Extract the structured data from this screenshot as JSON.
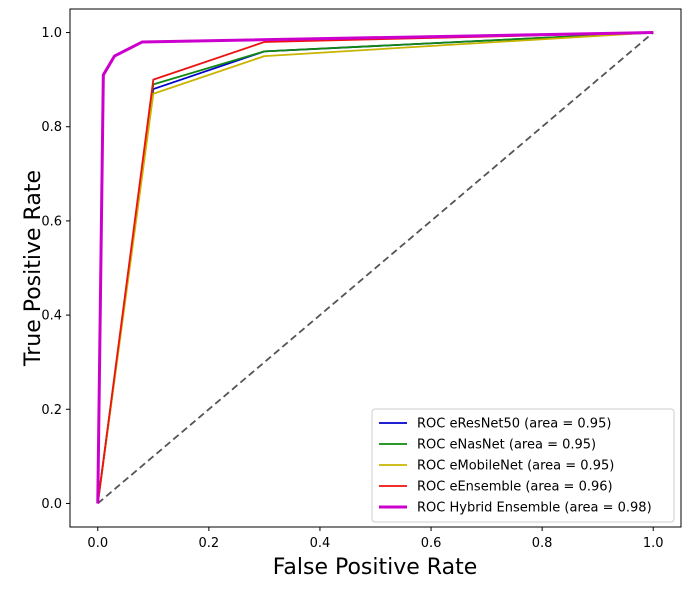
{
  "chart_data": {
    "type": "line",
    "title": "",
    "xlabel": "False Positive Rate",
    "ylabel": "True Positive Rate",
    "xlim": [
      -0.05,
      1.05
    ],
    "ylim": [
      -0.05,
      1.05
    ],
    "xticks": [
      0.0,
      0.2,
      0.4,
      0.6,
      0.8,
      1.0
    ],
    "yticks": [
      0.0,
      0.2,
      0.4,
      0.6,
      0.8,
      1.0
    ],
    "xtick_labels": [
      "0.0",
      "0.2",
      "0.4",
      "0.6",
      "0.8",
      "1.0"
    ],
    "ytick_labels": [
      "0.0",
      "0.2",
      "0.4",
      "0.6",
      "0.8",
      "1.0"
    ],
    "grid": false,
    "legend_position": "lower right",
    "diagonal": {
      "x": [
        0,
        1
      ],
      "y": [
        0,
        1
      ],
      "color": "#555555",
      "style": "dashed"
    },
    "series": [
      {
        "name": "ROC eResNet50 (area = 0.95)",
        "color": "#0000cc",
        "x": [
          0,
          0.1,
          0.3,
          1.0
        ],
        "y": [
          0,
          0.88,
          0.96,
          1.0
        ]
      },
      {
        "name": "ROC eNasNet (area = 0.95)",
        "color": "#118811",
        "x": [
          0,
          0.1,
          0.3,
          1.0
        ],
        "y": [
          0,
          0.89,
          0.96,
          1.0
        ]
      },
      {
        "name": "ROC eMobileNet (area = 0.95)",
        "color": "#c8b400",
        "x": [
          0,
          0.1,
          0.3,
          1.0
        ],
        "y": [
          0,
          0.87,
          0.95,
          1.0
        ]
      },
      {
        "name": "ROC eEnsemble (area = 0.96)",
        "color": "#ee1111",
        "x": [
          0,
          0.1,
          0.3,
          1.0
        ],
        "y": [
          0,
          0.9,
          0.98,
          1.0
        ]
      },
      {
        "name": "ROC Hybrid Ensemble (area = 0.98)",
        "color": "#cc00cc",
        "bold": true,
        "x": [
          0,
          0.01,
          0.03,
          0.08,
          1.0
        ],
        "y": [
          0,
          0.91,
          0.95,
          0.98,
          1.0
        ]
      }
    ]
  }
}
